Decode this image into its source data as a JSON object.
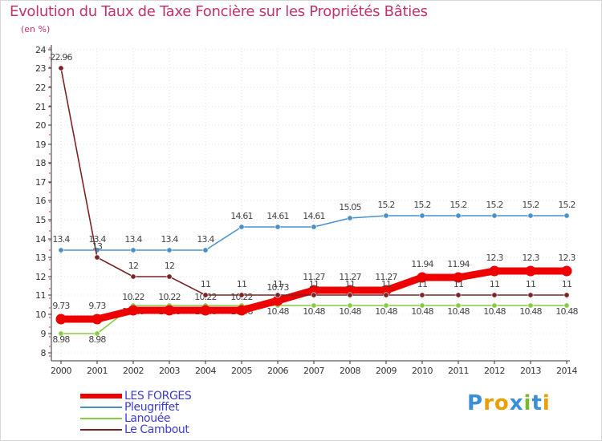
{
  "title": "Evolution du Taux de Taxe Foncière sur les Propriétés Bâties",
  "unit_label": "(en %)",
  "brand": {
    "text": "Proxiti",
    "colors": [
      "#3a8fd6",
      "#e8a000",
      "#e8a000",
      "#3a8fd6",
      "#7cb82f",
      "#3a8fd6",
      "#e8a000"
    ]
  },
  "chart_data": {
    "type": "line",
    "title": "Evolution du Taux de Taxe Foncière sur les Propriétés Bâties",
    "ylabel": "(en %)",
    "xlabel": "",
    "x": [
      "2000",
      "2001",
      "2002",
      "2003",
      "2004",
      "2005",
      "2006",
      "2007",
      "2008",
      "2009",
      "2010",
      "2011",
      "2012",
      "2013",
      "2014"
    ],
    "yticks": [
      "8",
      "9",
      "10",
      "11",
      "12",
      "13",
      "14",
      "15",
      "16",
      "17",
      "18",
      "19",
      "20",
      "21",
      "22",
      "23",
      "24"
    ],
    "y_axis_scale": "broken: 8–15 linear, 15–24 compressed (labels 16–24 sit at 15–16.5 spacing compressed)",
    "series": [
      {
        "name": "LES FORGES",
        "color": "#ee0000",
        "values": [
          9.73,
          9.73,
          10.22,
          10.22,
          10.22,
          10.22,
          10.73,
          11.27,
          11.27,
          11.27,
          11.94,
          11.94,
          12.3,
          12.3,
          12.3
        ],
        "labels": [
          "9.73",
          "9.73",
          "10.22",
          "10.22",
          "10.22",
          "10.22",
          "10.73",
          "11.27",
          "11.27",
          "11.27",
          "11.94",
          "11.94",
          "12.3",
          "12.3",
          "12.3"
        ]
      },
      {
        "name": "Pleugriffet",
        "color": "#4a90c8",
        "values": [
          13.4,
          13.4,
          13.4,
          13.4,
          13.4,
          14.61,
          14.61,
          14.61,
          15.05,
          15.2,
          15.2,
          15.2,
          15.2,
          15.2,
          15.2
        ],
        "labels": [
          "13.4",
          "13.4",
          "13.4",
          "13.4",
          "13.4",
          "14.61",
          "14.61",
          "14.61",
          "15.05",
          "15.2",
          "15.2",
          "15.2",
          "15.2",
          "15.2",
          "15.2"
        ]
      },
      {
        "name": "Lanouée",
        "color": "#88cc44",
        "values": [
          8.98,
          8.98,
          10.48,
          10.48,
          10.48,
          10.48,
          10.48,
          10.48,
          10.48,
          10.48,
          10.48,
          10.48,
          10.48,
          10.48,
          10.48
        ],
        "labels": [
          "8.98",
          "8.98",
          "10.48",
          "10.48",
          "10.48",
          "10.48",
          "10.48",
          "10.48",
          "10.48",
          "10.48",
          "10.48",
          "10.48",
          "10.48",
          "10.48",
          "10.48"
        ]
      },
      {
        "name": "Le Cambout",
        "color": "#7a2424",
        "values": [
          22.96,
          13,
          12,
          12,
          11,
          11,
          11,
          11,
          11,
          11,
          11,
          11,
          11,
          11,
          11
        ],
        "labels": [
          "22.96",
          "13",
          "12",
          "12",
          "11",
          "11",
          "11",
          "11",
          "11",
          "11",
          "11",
          "11",
          "11",
          "11",
          "11"
        ]
      }
    ]
  },
  "legend": [
    {
      "label": "LES FORGES",
      "color": "#ee0000",
      "thickness": "thick"
    },
    {
      "label": "Pleugriffet",
      "color": "#4a90c8",
      "thickness": "thin"
    },
    {
      "label": "Lanouée",
      "color": "#88cc44",
      "thickness": "thin"
    },
    {
      "label": "Le Cambout",
      "color": "#7a2424",
      "thickness": "thin"
    }
  ]
}
